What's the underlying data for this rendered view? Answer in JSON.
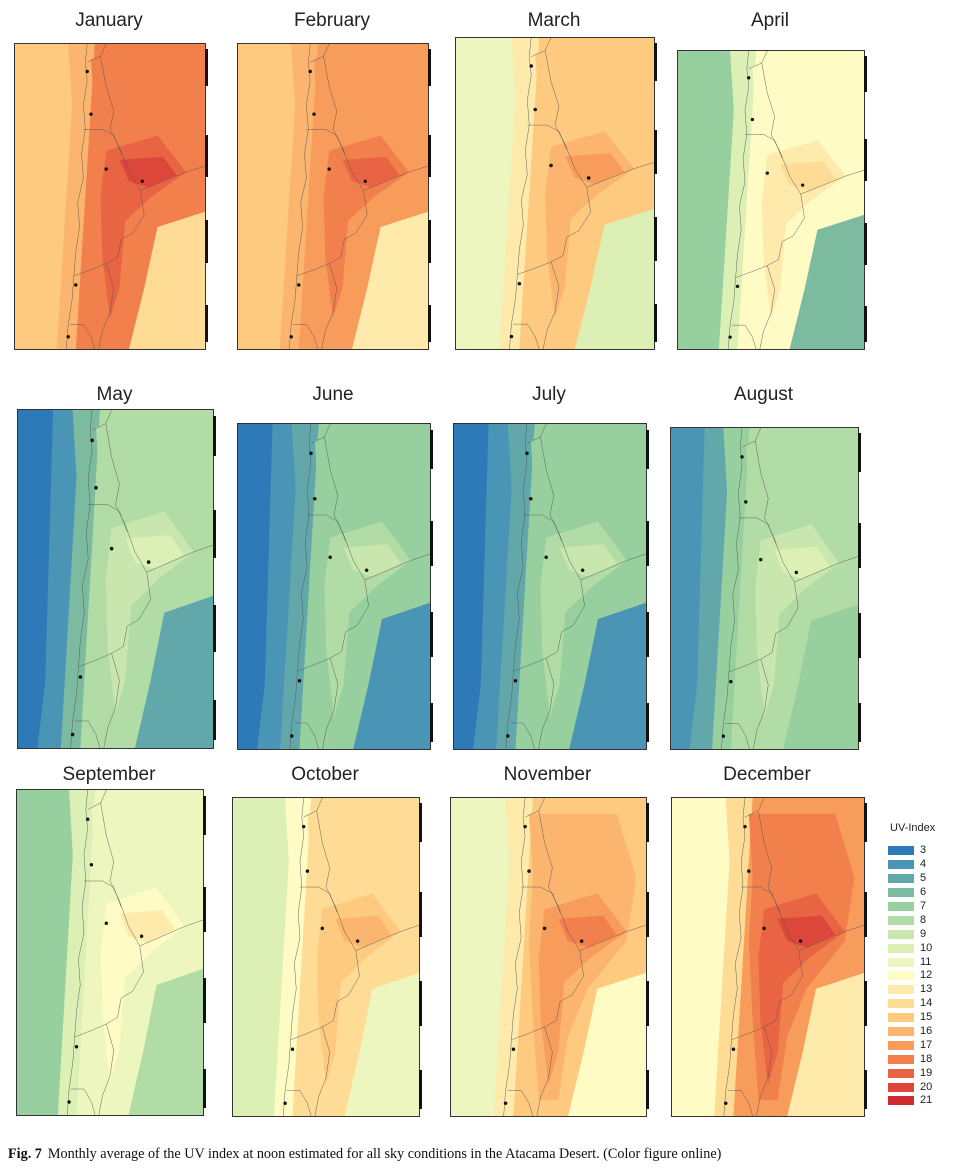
{
  "chart_data": {
    "type": "heatmap",
    "title": "Monthly average of the UV index at noon",
    "xlabel": "",
    "ylabel": "",
    "grid": false,
    "legend": {
      "title": "UV-Index",
      "placement": "bottom-right",
      "levels": [
        {
          "value": 3,
          "color": "#2e7ab8"
        },
        {
          "value": 4,
          "color": "#4a95b5"
        },
        {
          "value": 5,
          "color": "#62a8ab"
        },
        {
          "value": 6,
          "color": "#7dbba0"
        },
        {
          "value": 7,
          "color": "#98cf9e"
        },
        {
          "value": 8,
          "color": "#b2dca6"
        },
        {
          "value": 9,
          "color": "#c8e6ad"
        },
        {
          "value": 10,
          "color": "#dcefb5"
        },
        {
          "value": 11,
          "color": "#edf6bf"
        },
        {
          "value": 12,
          "color": "#fefbc4"
        },
        {
          "value": 13,
          "color": "#feeaaa"
        },
        {
          "value": 14,
          "color": "#fedc95"
        },
        {
          "value": 15,
          "color": "#fdca80"
        },
        {
          "value": 16,
          "color": "#fbb56e"
        },
        {
          "value": 17,
          "color": "#f89c5c"
        },
        {
          "value": 18,
          "color": "#f1804d"
        },
        {
          "value": 19,
          "color": "#e86443"
        },
        {
          "value": 20,
          "color": "#dd463b"
        },
        {
          "value": 21,
          "color": "#d02a2e"
        }
      ]
    },
    "panels": [
      {
        "month": "January",
        "approx_uv": {
          "ocean": 15,
          "coast": 16,
          "altiplano": 19,
          "max": 20,
          "south_east": 14
        }
      },
      {
        "month": "February",
        "approx_uv": {
          "ocean": 15,
          "coast": 16,
          "altiplano": 18,
          "max": 19,
          "south_east": 13
        }
      },
      {
        "month": "March",
        "approx_uv": {
          "ocean": 11,
          "coast": 13,
          "altiplano": 16,
          "max": 17,
          "south_east": 10
        }
      },
      {
        "month": "April",
        "approx_uv": {
          "ocean": 7,
          "coast": 10,
          "altiplano": 13,
          "max": 14,
          "south_east": 6
        }
      },
      {
        "month": "May",
        "approx_uv": {
          "ocean": 4,
          "coast": 6,
          "altiplano": 9,
          "max": 10,
          "south_east": 5
        }
      },
      {
        "month": "June",
        "approx_uv": {
          "ocean": 4,
          "coast": 5,
          "altiplano": 8,
          "max": 9,
          "south_east": 4
        }
      },
      {
        "month": "July",
        "approx_uv": {
          "ocean": 4,
          "coast": 5,
          "altiplano": 8,
          "max": 9,
          "south_east": 4
        }
      },
      {
        "month": "August",
        "approx_uv": {
          "ocean": 5,
          "coast": 7,
          "altiplano": 9,
          "max": 10,
          "south_east": 7
        }
      },
      {
        "month": "September",
        "approx_uv": {
          "ocean": 7,
          "coast": 10,
          "altiplano": 12,
          "max": 13,
          "south_east": 8
        }
      },
      {
        "month": "October",
        "approx_uv": {
          "ocean": 10,
          "coast": 12,
          "altiplano": 15,
          "max": 16,
          "south_east": 11
        }
      },
      {
        "month": "November",
        "approx_uv": {
          "ocean": 11,
          "coast": 13,
          "altiplano": 17,
          "max": 18,
          "south_east": 12
        }
      },
      {
        "month": "December",
        "approx_uv": {
          "ocean": 12,
          "coast": 14,
          "altiplano": 19,
          "max": 20,
          "south_east": 13
        }
      }
    ]
  },
  "caption": {
    "label": "Fig. 7",
    "text": "Monthly average of the UV index at noon estimated for all sky conditions in the Atacama Desert. (Color figure online)"
  }
}
